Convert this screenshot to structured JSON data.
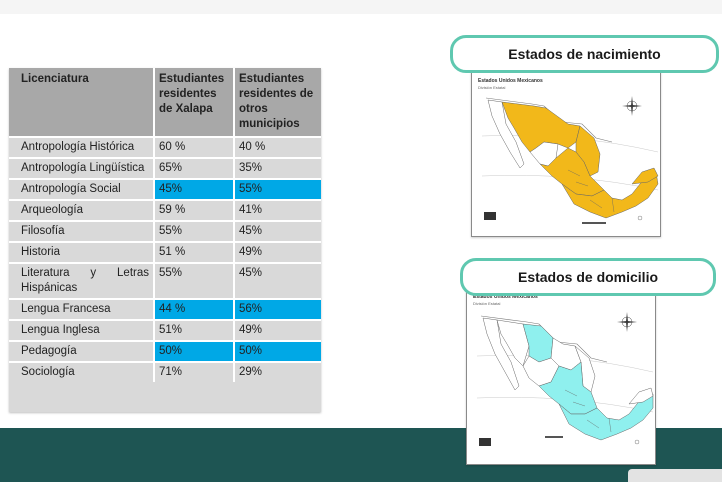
{
  "table": {
    "headers": [
      "Licenciatura",
      "Estudiantes residentes de Xalapa",
      "Estudiantes residentes de otros municipios"
    ],
    "rows": [
      {
        "name": "Antropología Histórica",
        "xalapa": "60 %",
        "otros": "40 %"
      },
      {
        "name": "Antropología Lingüística",
        "xalapa": "65%",
        "otros": "35%"
      },
      {
        "name": "Antropología Social",
        "xalapa": "45%",
        "otros": "55%"
      },
      {
        "name": "Arqueología",
        "xalapa": "59 %",
        "otros": "41%"
      },
      {
        "name": "Filosofía",
        "xalapa": "55%",
        "otros": "45%"
      },
      {
        "name": "Historia",
        "xalapa": "51 %",
        "otros": "49%"
      },
      {
        "name": "Literatura y Letras Hispánicas",
        "xalapa": "55%",
        "otros": "45%"
      },
      {
        "name": "Lengua Francesa",
        "xalapa": "44 %",
        "otros": "56%"
      },
      {
        "name": "Lengua Inglesa",
        "xalapa": "51%",
        "otros": "49%"
      },
      {
        "name": "Pedagogía",
        "xalapa": "50%",
        "otros": "50%"
      },
      {
        "name": "Sociología",
        "xalapa": "71%",
        "otros": "29%"
      }
    ],
    "highlighted_rows": [
      "Antropología Social",
      "Lengua Francesa",
      "Pedagogía"
    ]
  },
  "maps": {
    "nacimiento": {
      "title": "Estados de nacimiento",
      "map_title": "Estados Unidos Mexicanos",
      "map_subtitle": "División Estatal",
      "fill_color": "#f2b81a"
    },
    "domicilio": {
      "title": "Estados de domicilio",
      "map_title": "Estados Unidos Mexicanos",
      "map_subtitle": "División Estatal",
      "fill_color": "#8ff0ee"
    }
  },
  "colors": {
    "highlight": "#00a8e6",
    "pill_border": "#5fc8b0",
    "bottom_band": "#1e5553"
  }
}
